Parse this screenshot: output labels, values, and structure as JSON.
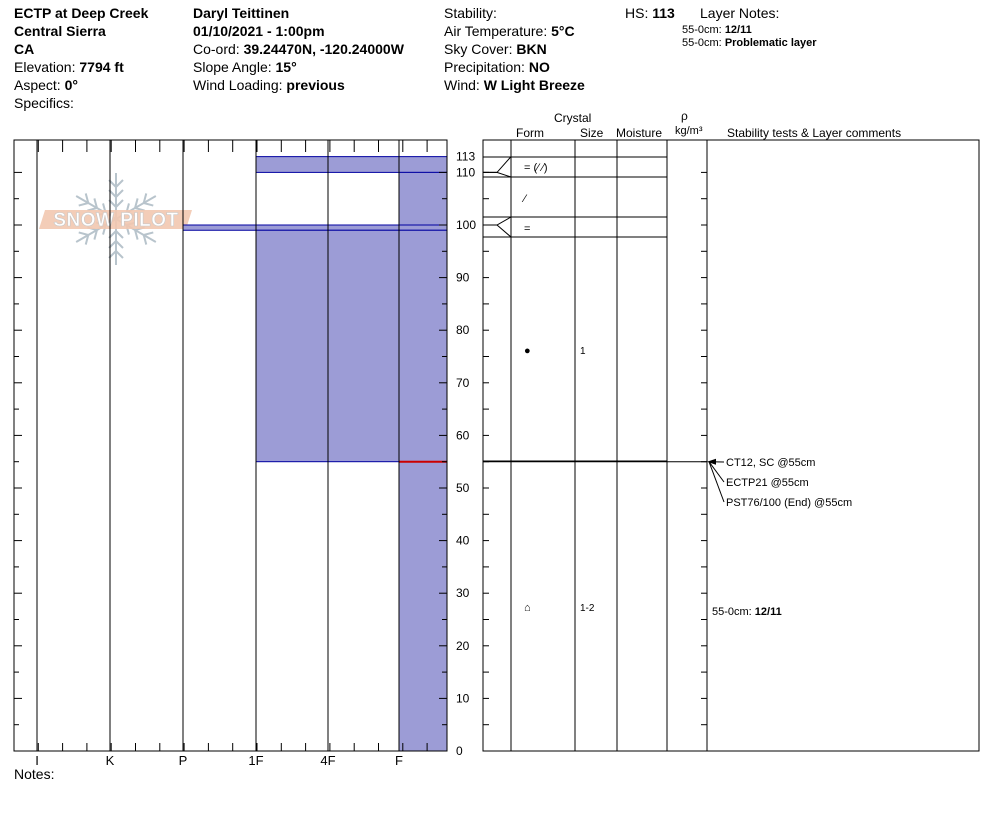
{
  "header": {
    "col1": [
      {
        "label": "",
        "value": "ECTP at Deep Creek"
      },
      {
        "label": "",
        "value": "Central Sierra"
      },
      {
        "label": "",
        "value": "CA"
      },
      {
        "label": "Elevation:",
        "value": "7794 ft"
      },
      {
        "label": "Aspect:",
        "value": "0°"
      },
      {
        "label": "Specifics:",
        "value": ""
      }
    ],
    "col2": [
      {
        "label": "",
        "value": "Daryl Teittinen"
      },
      {
        "label": "",
        "value": "01/10/2021 - 1:00pm"
      },
      {
        "label": "Co-ord:",
        "value": "39.24470N, -120.24000W"
      },
      {
        "label": "Slope Angle:",
        "value": "15°"
      },
      {
        "label": "Wind Loading:",
        "value": "previous"
      }
    ],
    "col3": [
      {
        "label": "Stability:",
        "value": ""
      },
      {
        "label": "Air Temperature:",
        "value": "5°C"
      },
      {
        "label": "Sky Cover:",
        "value": "BKN"
      },
      {
        "label": "Precipitation:",
        "value": "NO"
      },
      {
        "label": "Wind:",
        "value": "W Light Breeze"
      }
    ],
    "hs_label": "HS:",
    "hs_value": "113",
    "layer_notes_title": "Layer Notes:",
    "layer_notes": [
      {
        "range": "55-0cm:",
        "text": "12/11"
      },
      {
        "range": "55-0cm:",
        "text": "Problematic layer"
      }
    ],
    "notes_label": "Notes:"
  },
  "logo": {
    "text": "SNOW PILOT"
  },
  "columns": {
    "crystal": "Crystal",
    "form": "Form",
    "size": "Size",
    "moisture": "Moisture",
    "rho": "ρ",
    "density_unit": "kg/m³",
    "comments": "Stability tests & Layer comments"
  },
  "chart_data": {
    "type": "bar",
    "x_categories": [
      "I",
      "K",
      "P",
      "1F",
      "4F",
      "F"
    ],
    "y_ticks": [
      0,
      10,
      20,
      30,
      40,
      50,
      60,
      70,
      80,
      90,
      100,
      110,
      113
    ],
    "ylim": [
      0,
      113
    ],
    "hardness_profile": [
      {
        "top": 113,
        "bottom": 110,
        "hardness": "1F"
      },
      {
        "top": 110,
        "bottom": 100,
        "hardness": "F"
      },
      {
        "top": 100,
        "bottom": 99,
        "hardness": "P+"
      },
      {
        "top": 99,
        "bottom": 55,
        "hardness": "1F"
      },
      {
        "top": 55,
        "bottom": 0,
        "hardness": "F"
      }
    ],
    "layer_boundaries": [
      113,
      110,
      100,
      55
    ],
    "crystal_forms": [
      {
        "depth": 110,
        "symbol": "= (⁄ ⁄)"
      },
      {
        "depth": 104,
        "symbol": "⁄"
      },
      {
        "depth": 100,
        "symbol": "="
      },
      {
        "depth": 76,
        "symbol": "●",
        "size": "1"
      },
      {
        "depth": 27,
        "symbol": "⌂",
        "size": "1-2"
      }
    ],
    "stability_tests": [
      {
        "depth": 55,
        "text": "CT12, SC @55cm"
      },
      {
        "depth": 55,
        "text": "ECTP21 @55cm"
      },
      {
        "depth": 55,
        "text": "PST76/100 (End) @55cm"
      }
    ],
    "layer_comments": [
      {
        "range": "55-0cm:",
        "text": "12/11"
      }
    ],
    "colors": {
      "fill": "#9c9cd6",
      "edge": "#0000a0",
      "weak_layer": "#cc0000"
    }
  }
}
